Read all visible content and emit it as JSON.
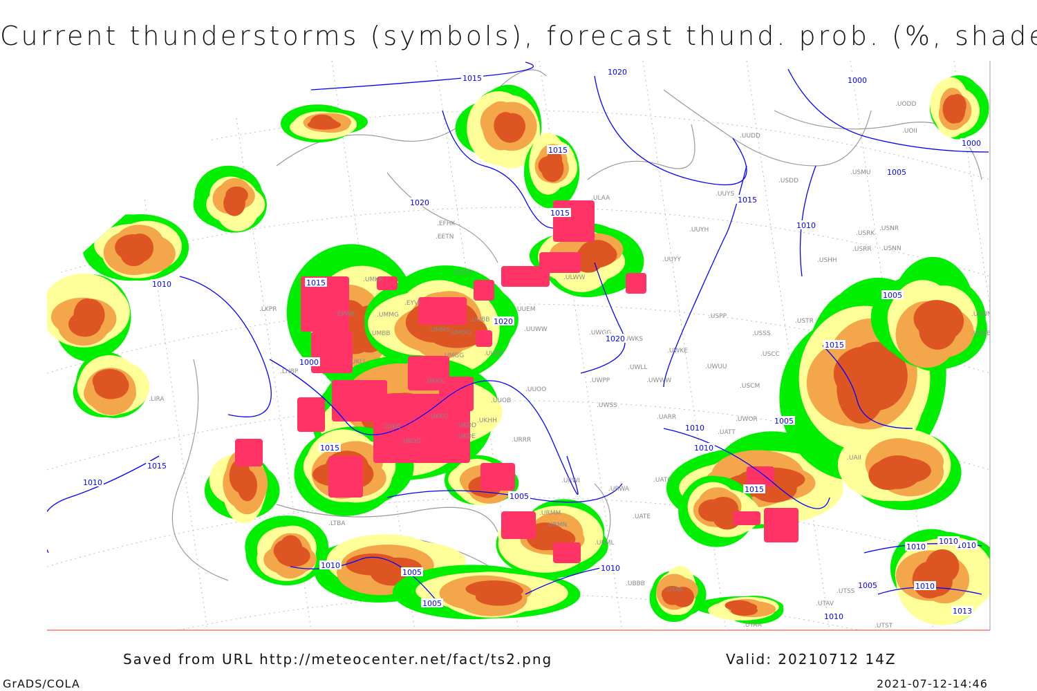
{
  "title": "Current thunderstorms (symbols), forecast thund. prob. (%, shaded)",
  "footer": {
    "saved_from": "Saved from URL http://meteocenter.net/fact/ts2.png",
    "valid": "Valid: 20210712 14Z",
    "credit": "GrADS/COLA",
    "timestamp": "2021-07-12-14:46"
  },
  "colors": {
    "prob_low": "#00ee00",
    "prob_mid": "#ffff99",
    "prob_high": "#f4a64a",
    "prob_very_high": "#dd5522",
    "thunderstorm_symbols": "#ff3366",
    "isobars": "#0000ff",
    "coastlines": "#999999",
    "station_labels": "#888888"
  },
  "isobar_labels": [
    "1015",
    "1020",
    "1000",
    "1015",
    "1000",
    "1005",
    "1015",
    "1020",
    "1010",
    "1015",
    "1010",
    "1015",
    "1020",
    "1020",
    "1005",
    "1015",
    "1000",
    "1005",
    "1010",
    "1015",
    "1015",
    "1010",
    "1005",
    "1015",
    "1010",
    "1010",
    "1010",
    "1010",
    "1005",
    "1005",
    "1010",
    "1013",
    "1010",
    "1005",
    "1010",
    "1010"
  ],
  "station_labels": [
    "UUDD",
    "USDD",
    "USMU",
    "UOII",
    "UODD",
    "UUYS",
    "UUYH",
    "UUYY",
    "USRK",
    "USRR",
    "USNN",
    "USNR",
    "USHH",
    "ULAA",
    "EFHK",
    "EETN",
    "ULOO",
    "ULWW",
    "UUEM",
    "UUWW",
    "UWGG",
    "UWKS",
    "UWKE",
    "UWUU",
    "USPP",
    "USSS",
    "USTR",
    "USCC",
    "USCM",
    "UWPP",
    "UUOO",
    "UUOB",
    "UWSS",
    "UARR",
    "UATT",
    "UWOR",
    "UWWW",
    "UWLL",
    "EPWA",
    "UMKK",
    "EYVI",
    "UMMG",
    "UMBB",
    "UMMS",
    "UMOO",
    "UUBB",
    "UMGG",
    "UUBP",
    "UKLL",
    "UKKK",
    "UKKG",
    "LUKK",
    "UKOO",
    "UKDD",
    "UKDE",
    "UKHH",
    "URRR",
    "URWI",
    "UATG",
    "URWA",
    "UATE",
    "URMM",
    "URMN",
    "URML",
    "UBBB",
    "UTAK",
    "UTAA",
    "UTSS",
    "UTAV",
    "UTST",
    "LKPR",
    "LHBP",
    "LIRA",
    "LTBA",
    "UNNN",
    "UNBB",
    "UAII"
  ]
}
